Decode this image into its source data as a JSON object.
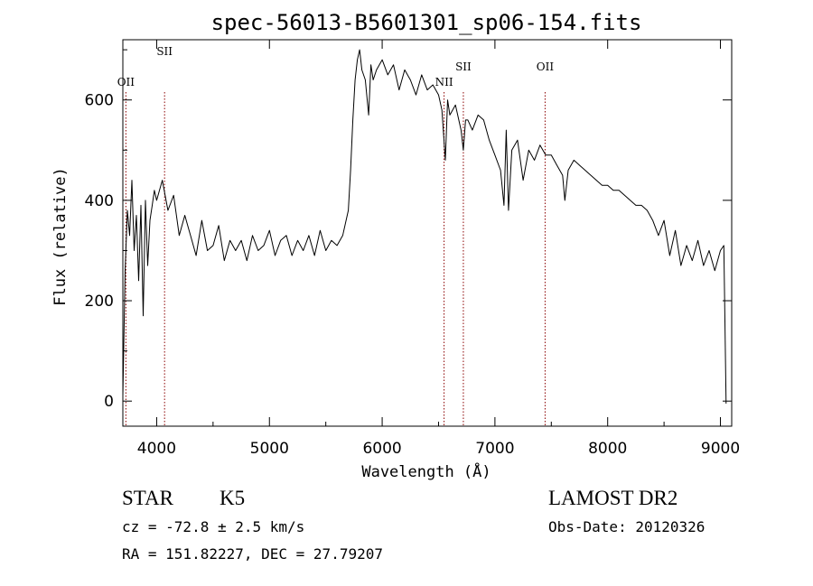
{
  "chart_data": {
    "type": "line",
    "title": "spec-56013-B5601301_sp06-154.fits",
    "xlabel": "Wavelength (Å)",
    "ylabel": "Flux (relative)",
    "xlim": [
      3700,
      9100
    ],
    "ylim": [
      -50,
      720
    ],
    "xticks": [
      "4000",
      "5000",
      "6000",
      "7000",
      "8000",
      "9000"
    ],
    "yticks": [
      "0",
      "200",
      "400",
      "600"
    ],
    "grid": false,
    "line_color": "#000000",
    "marker_color": "#8b0000",
    "series": [
      {
        "x": [
          3700,
          3720,
          3740,
          3760,
          3780,
          3800,
          3820,
          3840,
          3860,
          3880,
          3900,
          3920,
          3940,
          3960,
          3980,
          4000,
          4050,
          4100,
          4150,
          4200,
          4250,
          4300,
          4350,
          4400,
          4450,
          4500,
          4550,
          4600,
          4650,
          4700,
          4750,
          4800,
          4850,
          4900,
          4950,
          5000,
          5050,
          5100,
          5150,
          5200,
          5250,
          5300,
          5350,
          5400,
          5450,
          5500,
          5550,
          5600,
          5650,
          5700,
          5720,
          5740,
          5760,
          5780,
          5800,
          5820,
          5850,
          5880,
          5900,
          5920,
          5950,
          6000,
          6050,
          6100,
          6150,
          6200,
          6250,
          6300,
          6350,
          6400,
          6450,
          6500,
          6530,
          6560,
          6580,
          6600,
          6650,
          6700,
          6720,
          6740,
          6760,
          6800,
          6850,
          6900,
          6950,
          7000,
          7050,
          7080,
          7100,
          7120,
          7150,
          7200,
          7250,
          7300,
          7350,
          7400,
          7450,
          7500,
          7550,
          7600,
          7620,
          7650,
          7700,
          7750,
          7800,
          7850,
          7900,
          7950,
          8000,
          8050,
          8100,
          8150,
          8200,
          8250,
          8300,
          8350,
          8400,
          8450,
          8500,
          8550,
          8600,
          8650,
          8700,
          8750,
          8800,
          8850,
          8900,
          8950,
          9000,
          9030,
          9040,
          9050
        ],
        "values": [
          10,
          260,
          380,
          330,
          440,
          300,
          370,
          240,
          390,
          170,
          400,
          270,
          360,
          390,
          420,
          400,
          440,
          380,
          410,
          330,
          370,
          330,
          290,
          360,
          300,
          310,
          350,
          280,
          320,
          300,
          320,
          280,
          330,
          300,
          310,
          340,
          290,
          320,
          330,
          290,
          320,
          300,
          330,
          290,
          340,
          300,
          320,
          310,
          330,
          380,
          460,
          560,
          640,
          680,
          700,
          660,
          640,
          570,
          670,
          640,
          660,
          680,
          650,
          670,
          620,
          660,
          640,
          610,
          650,
          620,
          630,
          610,
          580,
          480,
          600,
          570,
          590,
          540,
          500,
          560,
          560,
          540,
          570,
          560,
          520,
          490,
          460,
          390,
          540,
          380,
          500,
          520,
          440,
          500,
          480,
          510,
          490,
          490,
          470,
          450,
          400,
          460,
          480,
          470,
          460,
          450,
          440,
          430,
          430,
          420,
          420,
          410,
          400,
          390,
          390,
          380,
          360,
          330,
          360,
          290,
          340,
          270,
          310,
          280,
          320,
          270,
          300,
          260,
          300,
          310,
          160,
          -5
        ]
      }
    ],
    "line_markers": [
      {
        "label": "OII",
        "x": 3727
      },
      {
        "label": "SII",
        "x": 4070
      },
      {
        "label": "NII",
        "x": 6549
      },
      {
        "label": "SII",
        "x": 6720
      },
      {
        "label": "OII",
        "x": 7445
      }
    ]
  },
  "info": {
    "object_class": "STAR",
    "subclass": "K5",
    "redshift": "cz = -72.8 ± 2.5 km/s",
    "coords": "RA = 151.82227, DEC =  27.79207",
    "survey": "LAMOST DR2",
    "obs_date": "Obs-Date: 20120326"
  }
}
